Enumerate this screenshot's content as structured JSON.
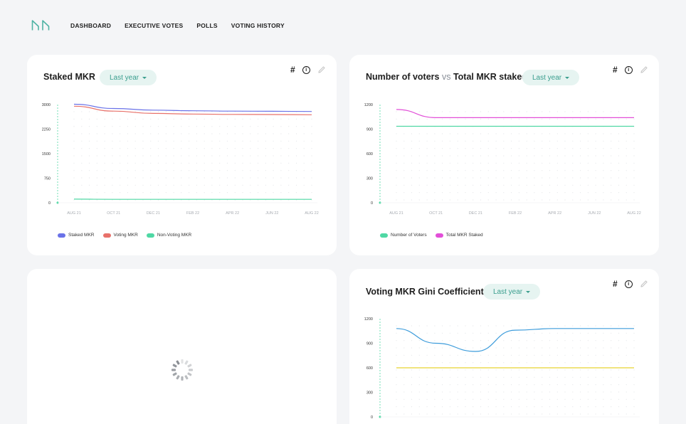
{
  "nav": {
    "items": [
      "DASHBOARD",
      "EXECUTIVE VOTES",
      "POLLS",
      "VOTING HISTORY"
    ]
  },
  "colors": {
    "brand": "#4fb3a4",
    "blue": "#6a72e8",
    "red": "#e8716a",
    "green": "#4fd8a4",
    "magenta": "#e24fd8",
    "sky": "#3d9cdb",
    "yellow": "#e6d432"
  },
  "toolbar": {
    "hash": "#",
    "info": "i"
  },
  "cards": {
    "staked": {
      "title": "Staked MKR",
      "range": "Last year",
      "legend": [
        "Staked MKR",
        "Voting MKR",
        "Non-Voting MKR"
      ]
    },
    "voters": {
      "title_a": "Number of voters",
      "title_vs": "vs",
      "title_b": "Total MKR staked",
      "range": "Last year",
      "legend": [
        "Number of Voters",
        "Total MKR Staked"
      ]
    },
    "gini": {
      "title": "Voting MKR Gini Coefficient",
      "range": "Last year"
    },
    "loading": {
      "spinner": "loading-spinner"
    }
  },
  "chart_data": [
    {
      "type": "line",
      "x": [
        "AUG 21",
        "OCT 21",
        "DEC 21",
        "FEB 22",
        "APR 22",
        "JUN 22",
        "AUG 22"
      ],
      "ylim": [
        0,
        3000
      ],
      "yticks": [
        "0",
        "750",
        "1500",
        "2250",
        "3000"
      ],
      "grid": "dotted",
      "legend_position": "bottom-left",
      "series": [
        {
          "name": "Staked MKR",
          "color": "#6a72e8",
          "values": [
            3010,
            2880,
            2830,
            2810,
            2800,
            2795,
            2790
          ]
        },
        {
          "name": "Voting MKR",
          "color": "#e8716a",
          "values": [
            2950,
            2800,
            2730,
            2710,
            2700,
            2695,
            2690
          ]
        },
        {
          "name": "Non-Voting MKR",
          "color": "#4fd8a4",
          "values": [
            110,
            105,
            105,
            105,
            105,
            105,
            105
          ]
        }
      ]
    },
    {
      "type": "line",
      "x": [
        "AUG 21",
        "OCT 21",
        "DEC 21",
        "FEB 22",
        "APR 22",
        "JUN 22",
        "AUG 22"
      ],
      "ylim": [
        0,
        1200
      ],
      "yticks": [
        "0",
        "300",
        "600",
        "900",
        "1200"
      ],
      "grid": "dotted",
      "legend_position": "bottom-left",
      "series": [
        {
          "name": "Number of Voters",
          "color": "#4fd8a4",
          "values": [
            935,
            935,
            935,
            935,
            935,
            935,
            935
          ]
        },
        {
          "name": "Total MKR Staked",
          "color": "#e24fd8",
          "values": [
            1140,
            1040,
            1040,
            1040,
            1040,
            1040,
            1040
          ]
        }
      ]
    },
    {
      "type": "line",
      "ylim": [
        0,
        1200
      ],
      "yticks": [
        "0",
        "300",
        "600",
        "900",
        "1200"
      ],
      "grid": "dotted",
      "series": [
        {
          "color": "#3d9cdb",
          "values": [
            1080,
            900,
            800,
            1060,
            1080,
            1080,
            1080
          ]
        },
        {
          "color": "#e6d432",
          "values": [
            600,
            600,
            600,
            600,
            600,
            600,
            600
          ]
        }
      ]
    }
  ]
}
